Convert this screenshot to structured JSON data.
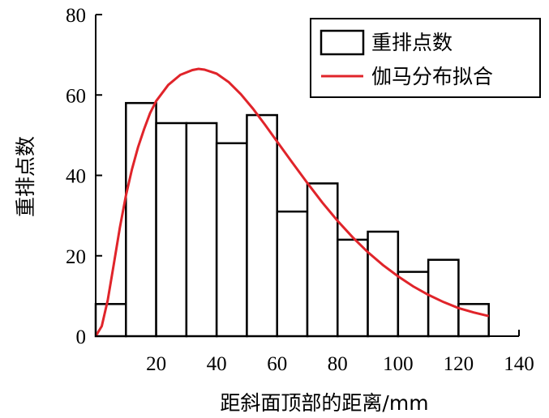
{
  "chart_data": {
    "type": "bar",
    "xlabel": "距斜面顶部的距离/mm",
    "ylabel": "重排点数",
    "xlim": [
      0,
      140
    ],
    "ylim": [
      0,
      80
    ],
    "xticks": [
      20,
      40,
      60,
      80,
      100,
      120,
      140
    ],
    "yticks": [
      0,
      20,
      40,
      60,
      80
    ],
    "legend_position": "top-right",
    "bin_width": 10,
    "bins": [
      {
        "start": 0,
        "end": 10,
        "value": 8
      },
      {
        "start": 10,
        "end": 20,
        "value": 58
      },
      {
        "start": 20,
        "end": 30,
        "value": 53
      },
      {
        "start": 30,
        "end": 40,
        "value": 53
      },
      {
        "start": 40,
        "end": 50,
        "value": 48
      },
      {
        "start": 50,
        "end": 60,
        "value": 55
      },
      {
        "start": 60,
        "end": 70,
        "value": 31
      },
      {
        "start": 70,
        "end": 80,
        "value": 38
      },
      {
        "start": 80,
        "end": 90,
        "value": 24
      },
      {
        "start": 90,
        "end": 100,
        "value": 26
      },
      {
        "start": 100,
        "end": 110,
        "value": 16
      },
      {
        "start": 110,
        "end": 120,
        "value": 19
      },
      {
        "start": 120,
        "end": 130,
        "value": 8
      }
    ],
    "series": [
      {
        "name": "重排点数",
        "kind": "histogram",
        "color": "#000000"
      },
      {
        "name": "伽马分布拟合",
        "kind": "line",
        "color": "#e0242a",
        "x": [
          0,
          2,
          4,
          6,
          8,
          10,
          12,
          14,
          16,
          18,
          20,
          24,
          28,
          32,
          34,
          36,
          40,
          44,
          48,
          52,
          56,
          60,
          65,
          70,
          75,
          80,
          85,
          90,
          95,
          100,
          105,
          110,
          115,
          120,
          125,
          130
        ],
        "y": [
          0,
          2.5,
          9,
          18,
          27,
          35,
          41.5,
          47,
          51.5,
          55.5,
          58.5,
          62.5,
          65,
          66.2,
          66.5,
          66.3,
          65.3,
          63.2,
          60.2,
          56.6,
          52.6,
          48.4,
          43.2,
          38.1,
          33.2,
          28.7,
          24.6,
          20.9,
          17.7,
          14.9,
          12.4,
          10.3,
          8.5,
          7.0,
          5.9,
          5.0
        ]
      }
    ]
  }
}
